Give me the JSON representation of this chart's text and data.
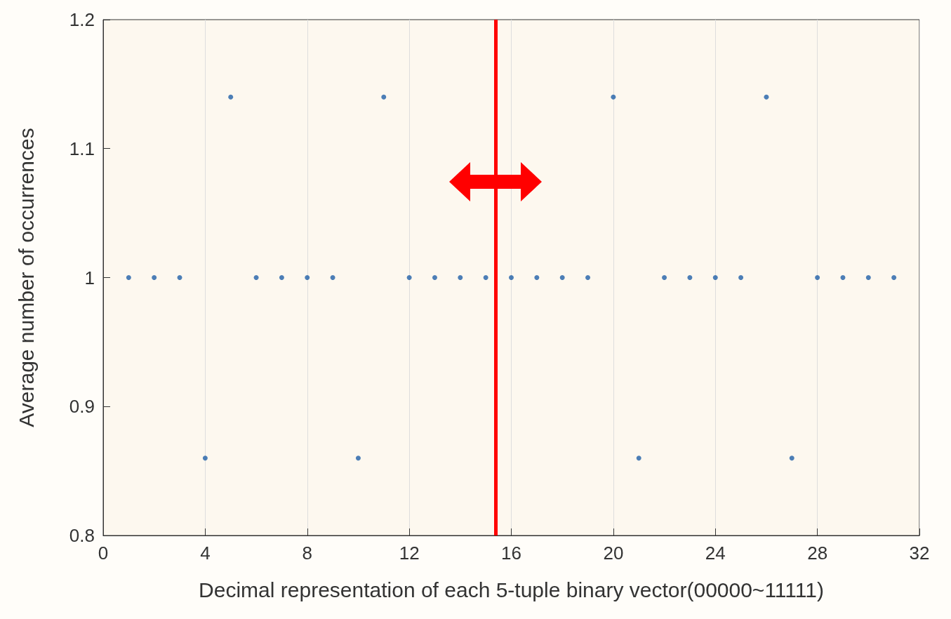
{
  "chart_data": {
    "type": "scatter",
    "xlabel": "Decimal representation of each 5-tuple binary vector(00000~11111)",
    "ylabel": "Average number of occurrences",
    "x": [
      1,
      2,
      3,
      4,
      5,
      6,
      7,
      8,
      9,
      10,
      11,
      12,
      13,
      14,
      15,
      16,
      17,
      18,
      19,
      20,
      21,
      22,
      23,
      24,
      25,
      26,
      27,
      28,
      29,
      30,
      31
    ],
    "series": [
      {
        "color": "#1f5fa8",
        "values": [
          1,
          1,
          1,
          0.86,
          1.14,
          1,
          1,
          1,
          1,
          0.86,
          1.14,
          1,
          1,
          1,
          1,
          1,
          1,
          1,
          1,
          1.14,
          0.86,
          1,
          1,
          1,
          1,
          1.14,
          0.86,
          1,
          1,
          1,
          1
        ]
      }
    ],
    "xlim": [
      0,
      32
    ],
    "xticks": [
      0,
      4,
      8,
      12,
      16,
      20,
      24,
      28,
      32
    ],
    "ylim": [
      0.8,
      1.2
    ],
    "yticks": [
      0.8,
      0.9,
      1,
      1.1,
      1.2
    ],
    "ref_lines": [
      {
        "axis": "x",
        "value": 15.4,
        "color": "#ff0000"
      }
    ],
    "grid": "x",
    "marker": "circle"
  }
}
